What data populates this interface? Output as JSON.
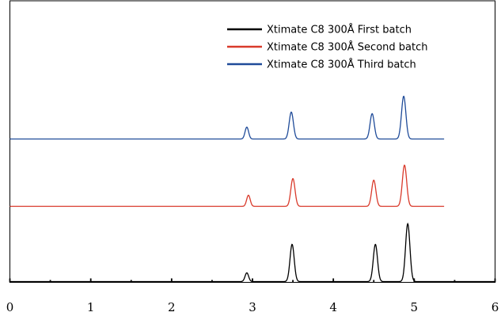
{
  "chart_data": {
    "type": "line",
    "title": "",
    "xlabel": "",
    "ylabel": "",
    "xlim": [
      0,
      6
    ],
    "x_ticks": [
      0,
      1,
      2,
      3,
      4,
      5,
      6
    ],
    "x_minor_ticks": [
      0.5,
      1.5,
      2.5,
      3.5,
      4.5,
      5.5
    ],
    "grid": false,
    "legend_position": "top-right",
    "x_end": 5.37,
    "series": [
      {
        "name": "Xtimate C8 300Å  First batch",
        "color": "#000000",
        "x_start": 0,
        "x_end": 6,
        "peaks": [
          {
            "x": 2.93,
            "height": 0.11,
            "width": 0.022
          },
          {
            "x": 3.49,
            "height": 0.47,
            "width": 0.026
          },
          {
            "x": 4.52,
            "height": 0.47,
            "width": 0.026
          },
          {
            "x": 4.92,
            "height": 0.73,
            "width": 0.027
          }
        ]
      },
      {
        "name": "Xtimate C8 300Å  Second batch",
        "color": "#d93a2b",
        "x_start": 0,
        "x_end": 5.37,
        "peaks": [
          {
            "x": 2.95,
            "height": 0.14,
            "width": 0.022
          },
          {
            "x": 3.5,
            "height": 0.35,
            "width": 0.026
          },
          {
            "x": 4.5,
            "height": 0.33,
            "width": 0.026
          },
          {
            "x": 4.88,
            "height": 0.52,
            "width": 0.027
          }
        ]
      },
      {
        "name": "Xtimate C8 300Å  Third batch",
        "color": "#1f4b99",
        "x_start": 0,
        "x_end": 5.37,
        "peaks": [
          {
            "x": 2.93,
            "height": 0.15,
            "width": 0.022
          },
          {
            "x": 3.48,
            "height": 0.34,
            "width": 0.026
          },
          {
            "x": 4.48,
            "height": 0.32,
            "width": 0.026
          },
          {
            "x": 4.87,
            "height": 0.54,
            "width": 0.027
          }
        ]
      }
    ]
  }
}
